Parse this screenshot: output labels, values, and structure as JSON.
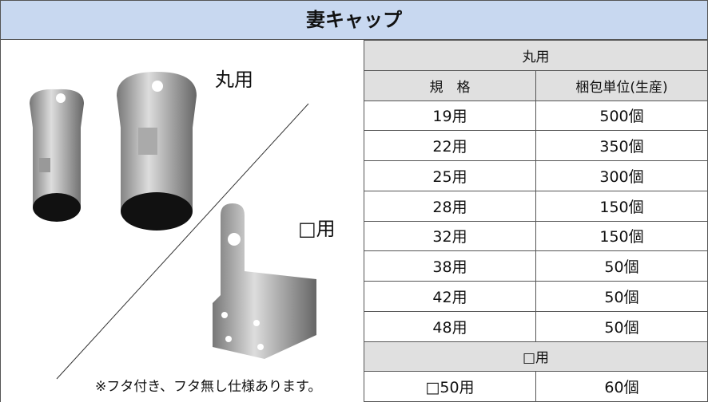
{
  "header": {
    "title": "妻キャップ"
  },
  "photo": {
    "round_label": "丸用",
    "square_label": "□用",
    "note": "※フタ付き、フタ無し仕様あります。"
  },
  "table": {
    "round_section": "丸用",
    "columns": [
      "規　格",
      "梱包単位(生産)"
    ],
    "round_rows": [
      [
        "19用",
        "500個"
      ],
      [
        "22用",
        "350個"
      ],
      [
        "25用",
        "300個"
      ],
      [
        "28用",
        "150個"
      ],
      [
        "32用",
        "150個"
      ],
      [
        "38用",
        "50個"
      ],
      [
        "42用",
        "50個"
      ],
      [
        "48用",
        "50個"
      ]
    ],
    "square_section": "□用",
    "square_rows": [
      [
        "□50用",
        "60個"
      ]
    ]
  }
}
